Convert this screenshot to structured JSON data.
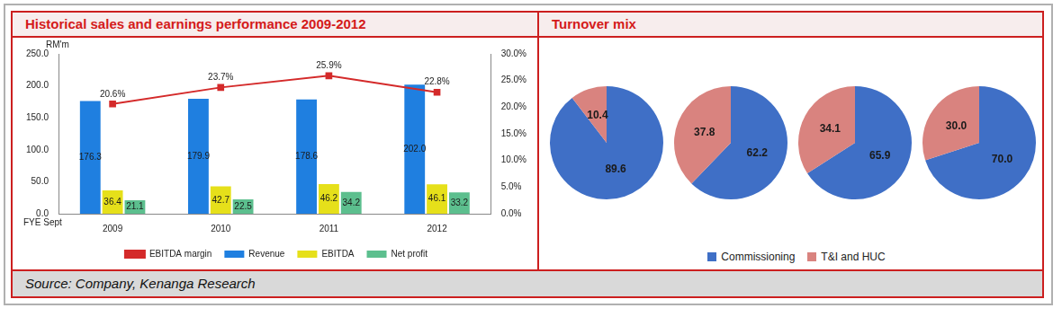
{
  "panels": [
    {
      "title": "Historical sales and earnings performance 2009-2012"
    },
    {
      "title": "Turnover mix"
    }
  ],
  "source": "Source: Company, Kenanga Research",
  "chart_data": [
    {
      "type": "bar",
      "ylabel": "RM'm",
      "xlabel": "FYE Sept",
      "categories": [
        "2009",
        "2010",
        "2011",
        "2012"
      ],
      "series": [
        {
          "name": "Revenue",
          "color": "#1f7fe0",
          "values": [
            176.3,
            179.9,
            178.6,
            202
          ],
          "value_labels": [
            "176.3",
            "179.9",
            "178.6",
            "202.0"
          ]
        },
        {
          "name": "EBITDA",
          "color": "#e6e01a",
          "values": [
            36.4,
            42.7,
            46.2,
            46.1
          ],
          "value_labels": [
            "36.4",
            "42.7",
            "46.2",
            "46.1"
          ]
        },
        {
          "name": "Net profit",
          "color": "#5cbf8e",
          "values": [
            21.1,
            22.5,
            34.2,
            33.2
          ],
          "value_labels": [
            "21.1",
            "22.5",
            "34.2",
            "33.2"
          ]
        },
        {
          "name": "EBITDA margin",
          "color": "#d42a2a",
          "type": "line",
          "axis": "y2",
          "marker": "square",
          "values": [
            20.6,
            23.7,
            25.9,
            22.8
          ],
          "value_labels": [
            "20.6%",
            "23.7%",
            "25.9%",
            "22.8%"
          ]
        }
      ],
      "ylim": [
        0,
        250
      ],
      "yticks": [
        {
          "value": 0,
          "label": "0.0"
        },
        {
          "value": 50,
          "label": "50.0"
        },
        {
          "value": 100,
          "label": "100.0"
        },
        {
          "value": 150,
          "label": "150.0"
        },
        {
          "value": 200,
          "label": "200.0"
        },
        {
          "value": 250,
          "label": "250.0"
        }
      ],
      "y2lim": [
        0,
        30
      ],
      "y2ticks": [
        {
          "value": 0,
          "label": "0.0%"
        },
        {
          "value": 5,
          "label": "5.0%"
        },
        {
          "value": 10,
          "label": "10.0%"
        },
        {
          "value": 15,
          "label": "15.0%"
        },
        {
          "value": 20,
          "label": "20.0%"
        },
        {
          "value": 25,
          "label": "25.0%"
        },
        {
          "value": 30,
          "label": "30.0%"
        }
      ],
      "grid": false,
      "legend": "bottom",
      "data_labels": true
    },
    {
      "type": "pie",
      "categories": [
        "Commissioning",
        "T&I and HUC"
      ],
      "values": [
        89.6,
        10.4
      ],
      "colors": [
        "#3f6fc6",
        "#d9837f"
      ],
      "data_labels": true
    },
    {
      "type": "pie",
      "categories": [
        "Commissioning",
        "T&I and HUC"
      ],
      "values": [
        62.2,
        37.8
      ],
      "colors": [
        "#3f6fc6",
        "#d9837f"
      ],
      "data_labels": true
    },
    {
      "type": "pie",
      "categories": [
        "Commissioning",
        "T&I and HUC"
      ],
      "values": [
        65.9,
        34.1
      ],
      "colors": [
        "#3f6fc6",
        "#d9837f"
      ],
      "data_labels": true
    },
    {
      "type": "pie",
      "categories": [
        "Commissioning",
        "T&I and HUC"
      ],
      "values": [
        70,
        30
      ],
      "colors": [
        "#3f6fc6",
        "#d9837f"
      ],
      "value_labels": [
        "70.0",
        "30.0"
      ],
      "data_labels": true
    }
  ]
}
